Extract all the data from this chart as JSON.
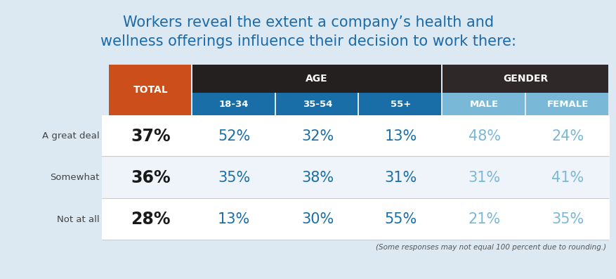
{
  "title_line1": "Workers reveal the extent a company’s health and",
  "title_line2": "wellness offerings influence their decision to work there:",
  "title_color": "#1b6aaa",
  "background_color": "#dce8f2",
  "footnote": "(Some responses may not equal 100 percent due to rounding.)",
  "row_labels": [
    "A great deal",
    "Somewhat",
    "Not at all"
  ],
  "data": [
    [
      "37%",
      "52%",
      "32%",
      "13%",
      "48%",
      "24%"
    ],
    [
      "36%",
      "35%",
      "38%",
      "31%",
      "31%",
      "41%"
    ],
    [
      "28%",
      "13%",
      "30%",
      "55%",
      "21%",
      "35%"
    ]
  ],
  "total_header_color": "#cc4e1a",
  "age_header_color": "#252020",
  "gender_header_color": "#2e2828",
  "age_sub_color": "#1a6ea8",
  "gender_sub_color": "#7ab8d8",
  "header_text_color": "#ffffff",
  "row_label_color": "#444444",
  "cell_bg_white": "#ffffff",
  "cell_bg_light": "#eef4f9",
  "total_value_color": "#1a1a1a",
  "age_value_color": "#1a6ea8",
  "gender_value_color": "#7ab8d8",
  "divider_color": "#cccccc"
}
